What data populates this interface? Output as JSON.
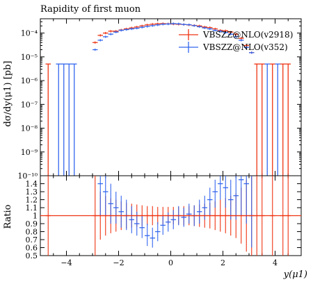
{
  "chart_data": {
    "type": "line",
    "title": "Rapidity of first muon",
    "xlabel": "y(μ1)",
    "ylabel": "dσ/dy(μ1) [pb]",
    "ratio_ylabel": "Ratio",
    "xlim": [
      -5,
      5
    ],
    "ylim": [
      1e-10,
      0.0004
    ],
    "yscale": "log",
    "ratio_ylim": [
      0.5,
      1.5
    ],
    "grid": false,
    "legend_position": "top-right",
    "x_ticks": [
      -4,
      -2,
      0,
      2,
      4
    ],
    "x_tick_labels": [
      "−4",
      "−2",
      "0",
      "2",
      "4"
    ],
    "y_tick_exps": [
      -10,
      -9,
      -8,
      -7,
      -6,
      -5,
      -4
    ],
    "y_tick_labels": [
      "10⁻¹⁰",
      "10⁻⁹",
      "10⁻⁸",
      "10⁻⁷",
      "10⁻⁶",
      "10⁻⁵",
      "10⁻⁴"
    ],
    "ratio_ticks": [
      0.5,
      0.6,
      0.7,
      0.8,
      0.9,
      1.0,
      1.1,
      1.2,
      1.3,
      1.4
    ],
    "ratio_tick_labels": [
      "0.5",
      "0.6",
      "0.7",
      "0.8",
      "0.9",
      "1",
      "1.1",
      "1.2",
      "1.3",
      "1.4"
    ],
    "series": [
      {
        "name": "VBSZZ@NLO(v2918)",
        "color": "#ee3311",
        "bins": [
          {
            "x0": -4.8,
            "x1": -4.6,
            "y": 5e-06
          },
          {
            "x0": -3.0,
            "x1": -2.8,
            "y": 4e-05
          },
          {
            "x0": -2.8,
            "x1": -2.6,
            "y": 8e-05
          },
          {
            "x0": -2.6,
            "x1": -2.4,
            "y": 0.0001
          },
          {
            "x0": -2.4,
            "x1": -2.2,
            "y": 0.00012
          },
          {
            "x0": -2.2,
            "x1": -2.0,
            "y": 0.00012
          },
          {
            "x0": -2.0,
            "x1": -1.8,
            "y": 0.000135
          },
          {
            "x0": -1.8,
            "x1": -1.6,
            "y": 0.00015
          },
          {
            "x0": -1.6,
            "x1": -1.4,
            "y": 0.000165
          },
          {
            "x0": -1.4,
            "x1": -1.2,
            "y": 0.00018
          },
          {
            "x0": -1.2,
            "x1": -1.0,
            "y": 0.0002
          },
          {
            "x0": -1.0,
            "x1": -0.8,
            "y": 0.00022
          },
          {
            "x0": -0.8,
            "x1": -0.6,
            "y": 0.000235
          },
          {
            "x0": -0.6,
            "x1": -0.4,
            "y": 0.000245
          },
          {
            "x0": -0.4,
            "x1": -0.2,
            "y": 0.00025
          },
          {
            "x0": -0.2,
            "x1": 0.0,
            "y": 0.000245
          },
          {
            "x0": 0.0,
            "x1": 0.2,
            "y": 0.00024
          },
          {
            "x0": 0.2,
            "x1": 0.4,
            "y": 0.000235
          },
          {
            "x0": 0.4,
            "x1": 0.6,
            "y": 0.00023
          },
          {
            "x0": 0.6,
            "x1": 0.8,
            "y": 0.00022
          },
          {
            "x0": 0.8,
            "x1": 1.0,
            "y": 0.00021
          },
          {
            "x0": 1.0,
            "x1": 1.2,
            "y": 0.0002
          },
          {
            "x0": 1.2,
            "x1": 1.4,
            "y": 0.00018
          },
          {
            "x0": 1.4,
            "x1": 1.6,
            "y": 0.00017
          },
          {
            "x0": 1.6,
            "x1": 1.8,
            "y": 0.00015
          },
          {
            "x0": 1.8,
            "x1": 2.0,
            "y": 0.00013
          },
          {
            "x0": 2.0,
            "x1": 2.2,
            "y": 0.000125
          },
          {
            "x0": 2.2,
            "x1": 2.4,
            "y": 0.00011
          },
          {
            "x0": 2.4,
            "x1": 2.6,
            "y": 9e-05
          },
          {
            "x0": 2.6,
            "x1": 2.8,
            "y": 6e-05
          },
          {
            "x0": 2.8,
            "x1": 3.0,
            "y": 3e-05
          },
          {
            "x0": 3.0,
            "x1": 3.2,
            "y": 1.5e-05
          },
          {
            "x0": 3.2,
            "x1": 3.4,
            "y": 5e-06
          },
          {
            "x0": 3.4,
            "x1": 3.6,
            "y": 5e-06
          },
          {
            "x0": 3.8,
            "x1": 4.0,
            "y": 5e-06
          },
          {
            "x0": 4.2,
            "x1": 4.4,
            "y": 5e-06
          },
          {
            "x0": 4.4,
            "x1": 4.6,
            "y": 5e-06
          }
        ],
        "ratio": [
          {
            "x0": -4.8,
            "x1": -4.6,
            "r": 1.0,
            "lo": 0.5,
            "hi": 1.5
          },
          {
            "x0": -3.0,
            "x1": -2.8,
            "r": 1.0,
            "lo": 0.5,
            "hi": 1.5
          },
          {
            "x0": -2.8,
            "x1": -2.6,
            "r": 1.0,
            "lo": 0.7,
            "hi": 1.3
          },
          {
            "x0": -2.6,
            "x1": -2.4,
            "r": 1.0,
            "lo": 0.75,
            "hi": 1.25
          },
          {
            "x0": -2.4,
            "x1": -2.2,
            "r": 1.0,
            "lo": 0.78,
            "hi": 1.22
          },
          {
            "x0": -2.2,
            "x1": -2.0,
            "r": 1.0,
            "lo": 0.8,
            "hi": 1.2
          },
          {
            "x0": -2.0,
            "x1": -1.8,
            "r": 1.0,
            "lo": 0.82,
            "hi": 1.18
          },
          {
            "x0": -1.8,
            "x1": -1.6,
            "r": 1.0,
            "lo": 0.84,
            "hi": 1.16
          },
          {
            "x0": -1.6,
            "x1": -1.4,
            "r": 1.0,
            "lo": 0.85,
            "hi": 1.15
          },
          {
            "x0": -1.4,
            "x1": -1.2,
            "r": 1.0,
            "lo": 0.86,
            "hi": 1.14
          },
          {
            "x0": -1.2,
            "x1": -1.0,
            "r": 1.0,
            "lo": 0.87,
            "hi": 1.13
          },
          {
            "x0": -1.0,
            "x1": -0.8,
            "r": 1.0,
            "lo": 0.88,
            "hi": 1.12
          },
          {
            "x0": -0.8,
            "x1": -0.6,
            "r": 1.0,
            "lo": 0.88,
            "hi": 1.12
          },
          {
            "x0": -0.6,
            "x1": -0.4,
            "r": 1.0,
            "lo": 0.89,
            "hi": 1.11
          },
          {
            "x0": -0.4,
            "x1": -0.2,
            "r": 1.0,
            "lo": 0.89,
            "hi": 1.11
          },
          {
            "x0": -0.2,
            "x1": 0.0,
            "r": 1.0,
            "lo": 0.89,
            "hi": 1.11
          },
          {
            "x0": 0.0,
            "x1": 0.2,
            "r": 1.0,
            "lo": 0.89,
            "hi": 1.11
          },
          {
            "x0": 0.2,
            "x1": 0.4,
            "r": 1.0,
            "lo": 0.89,
            "hi": 1.11
          },
          {
            "x0": 0.4,
            "x1": 0.6,
            "r": 1.0,
            "lo": 0.88,
            "hi": 1.12
          },
          {
            "x0": 0.6,
            "x1": 0.8,
            "r": 1.0,
            "lo": 0.88,
            "hi": 1.12
          },
          {
            "x0": 0.8,
            "x1": 1.0,
            "r": 1.0,
            "lo": 0.87,
            "hi": 1.13
          },
          {
            "x0": 1.0,
            "x1": 1.2,
            "r": 1.0,
            "lo": 0.86,
            "hi": 1.14
          },
          {
            "x0": 1.2,
            "x1": 1.4,
            "r": 1.0,
            "lo": 0.85,
            "hi": 1.15
          },
          {
            "x0": 1.4,
            "x1": 1.6,
            "r": 1.0,
            "lo": 0.84,
            "hi": 1.16
          },
          {
            "x0": 1.6,
            "x1": 1.8,
            "r": 1.0,
            "lo": 0.82,
            "hi": 1.18
          },
          {
            "x0": 1.8,
            "x1": 2.0,
            "r": 1.0,
            "lo": 0.8,
            "hi": 1.2
          },
          {
            "x0": 2.0,
            "x1": 2.2,
            "r": 1.0,
            "lo": 0.78,
            "hi": 1.22
          },
          {
            "x0": 2.2,
            "x1": 2.4,
            "r": 1.0,
            "lo": 0.75,
            "hi": 1.25
          },
          {
            "x0": 2.4,
            "x1": 2.6,
            "r": 1.0,
            "lo": 0.72,
            "hi": 1.28
          },
          {
            "x0": 2.6,
            "x1": 2.8,
            "r": 1.0,
            "lo": 0.65,
            "hi": 1.35
          },
          {
            "x0": 2.8,
            "x1": 3.0,
            "r": 1.0,
            "lo": 0.55,
            "hi": 1.45
          },
          {
            "x0": 3.0,
            "x1": 3.2,
            "r": 1.0,
            "lo": 0.5,
            "hi": 1.5
          },
          {
            "x0": 3.2,
            "x1": 3.4,
            "r": 1.0,
            "lo": 0.5,
            "hi": 1.5
          },
          {
            "x0": 3.4,
            "x1": 3.6,
            "r": 1.0,
            "lo": 0.5,
            "hi": 1.5
          },
          {
            "x0": 3.8,
            "x1": 4.0,
            "r": 1.0,
            "lo": 0.5,
            "hi": 1.5
          },
          {
            "x0": 4.2,
            "x1": 4.4,
            "r": 1.0,
            "lo": 0.5,
            "hi": 1.5
          },
          {
            "x0": 4.4,
            "x1": 4.6,
            "r": 1.0,
            "lo": 0.5,
            "hi": 1.5
          }
        ]
      },
      {
        "name": "VBSZZ@NLO(v352)",
        "color": "#3366ee",
        "bins": [
          {
            "x0": -4.4,
            "x1": -4.2,
            "y": 5e-06
          },
          {
            "x0": -4.2,
            "x1": -4.0,
            "y": 5e-06
          },
          {
            "x0": -4.0,
            "x1": -3.8,
            "y": 5e-06
          },
          {
            "x0": -3.8,
            "x1": -3.6,
            "y": 5e-06
          },
          {
            "x0": -3.0,
            "x1": -2.8,
            "y": 2e-05
          },
          {
            "x0": -2.8,
            "x1": -2.6,
            "y": 5e-05
          },
          {
            "x0": -2.6,
            "x1": -2.4,
            "y": 7e-05
          },
          {
            "x0": -2.4,
            "x1": -2.2,
            "y": 9e-05
          },
          {
            "x0": -2.2,
            "x1": -2.0,
            "y": 0.00011
          },
          {
            "x0": -2.0,
            "x1": -1.8,
            "y": 0.00013
          },
          {
            "x0": -1.8,
            "x1": -1.6,
            "y": 0.00014
          },
          {
            "x0": -1.6,
            "x1": -1.4,
            "y": 0.00015
          },
          {
            "x0": -1.4,
            "x1": -1.2,
            "y": 0.00016
          },
          {
            "x0": -1.2,
            "x1": -1.0,
            "y": 0.000175
          },
          {
            "x0": -1.0,
            "x1": -0.8,
            "y": 0.00019
          },
          {
            "x0": -0.8,
            "x1": -0.6,
            "y": 0.000205
          },
          {
            "x0": -0.6,
            "x1": -0.4,
            "y": 0.00022
          },
          {
            "x0": -0.4,
            "x1": -0.2,
            "y": 0.000235
          },
          {
            "x0": -0.2,
            "x1": 0.0,
            "y": 0.00024
          },
          {
            "x0": 0.0,
            "x1": 0.2,
            "y": 0.00025
          },
          {
            "x0": 0.2,
            "x1": 0.4,
            "y": 0.000245
          },
          {
            "x0": 0.4,
            "x1": 0.6,
            "y": 0.00023
          },
          {
            "x0": 0.6,
            "x1": 0.8,
            "y": 0.000225
          },
          {
            "x0": 0.8,
            "x1": 1.0,
            "y": 0.000205
          },
          {
            "x0": 1.0,
            "x1": 1.2,
            "y": 0.000185
          },
          {
            "x0": 1.2,
            "x1": 1.4,
            "y": 0.000165
          },
          {
            "x0": 1.4,
            "x1": 1.6,
            "y": 0.00015
          },
          {
            "x0": 1.6,
            "x1": 1.8,
            "y": 0.00013
          },
          {
            "x0": 1.8,
            "x1": 2.0,
            "y": 0.00012
          },
          {
            "x0": 2.0,
            "x1": 2.2,
            "y": 0.000105
          },
          {
            "x0": 2.2,
            "x1": 2.4,
            "y": 9e-05
          },
          {
            "x0": 2.4,
            "x1": 2.6,
            "y": 7e-05
          },
          {
            "x0": 2.6,
            "x1": 2.8,
            "y": 5e-05
          },
          {
            "x0": 2.8,
            "x1": 3.0,
            "y": 2.5e-05
          },
          {
            "x0": 3.0,
            "x1": 3.2,
            "y": 1.5e-05
          },
          {
            "x0": 3.6,
            "x1": 3.8,
            "y": 5e-06
          },
          {
            "x0": 4.0,
            "x1": 4.2,
            "y": 5e-06
          }
        ],
        "ratio": [
          {
            "x0": -2.8,
            "x1": -2.6,
            "r": 1.4,
            "lo": 1.0,
            "hi": 1.5
          },
          {
            "x0": -2.6,
            "x1": -2.4,
            "r": 1.3,
            "lo": 1.0,
            "hi": 1.5
          },
          {
            "x0": -2.4,
            "x1": -2.2,
            "r": 1.15,
            "lo": 0.9,
            "hi": 1.4
          },
          {
            "x0": -2.2,
            "x1": -2.0,
            "r": 1.1,
            "lo": 0.9,
            "hi": 1.3
          },
          {
            "x0": -2.0,
            "x1": -1.8,
            "r": 1.05,
            "lo": 0.85,
            "hi": 1.25
          },
          {
            "x0": -1.8,
            "x1": -1.6,
            "r": 1.0,
            "lo": 0.82,
            "hi": 1.2
          },
          {
            "x0": -1.6,
            "x1": -1.4,
            "r": 0.95,
            "lo": 0.78,
            "hi": 1.12
          },
          {
            "x0": -1.4,
            "x1": -1.2,
            "r": 0.9,
            "lo": 0.75,
            "hi": 1.05
          },
          {
            "x0": -1.2,
            "x1": -1.0,
            "r": 0.85,
            "lo": 0.72,
            "hi": 1.0
          },
          {
            "x0": -1.0,
            "x1": -0.8,
            "r": 0.75,
            "lo": 0.62,
            "hi": 0.9
          },
          {
            "x0": -0.8,
            "x1": -0.6,
            "r": 0.72,
            "lo": 0.6,
            "hi": 0.85
          },
          {
            "x0": -0.6,
            "x1": -0.4,
            "r": 0.8,
            "lo": 0.68,
            "hi": 0.92
          },
          {
            "x0": -0.4,
            "x1": -0.2,
            "r": 0.88,
            "lo": 0.76,
            "hi": 1.0
          },
          {
            "x0": -0.2,
            "x1": 0.0,
            "r": 0.92,
            "lo": 0.8,
            "hi": 1.04
          },
          {
            "x0": 0.0,
            "x1": 0.2,
            "r": 0.95,
            "lo": 0.83,
            "hi": 1.07
          },
          {
            "x0": 0.2,
            "x1": 0.4,
            "r": 1.0,
            "lo": 0.88,
            "hi": 1.12
          },
          {
            "x0": 0.4,
            "x1": 0.6,
            "r": 0.98,
            "lo": 0.86,
            "hi": 1.1
          },
          {
            "x0": 0.6,
            "x1": 0.8,
            "r": 1.02,
            "lo": 0.9,
            "hi": 1.15
          },
          {
            "x0": 0.8,
            "x1": 1.0,
            "r": 1.0,
            "lo": 0.87,
            "hi": 1.13
          },
          {
            "x0": 1.0,
            "x1": 1.2,
            "r": 1.05,
            "lo": 0.9,
            "hi": 1.2
          },
          {
            "x0": 1.2,
            "x1": 1.4,
            "r": 1.1,
            "lo": 0.95,
            "hi": 1.25
          },
          {
            "x0": 1.4,
            "x1": 1.6,
            "r": 1.2,
            "lo": 1.0,
            "hi": 1.35
          },
          {
            "x0": 1.6,
            "x1": 1.8,
            "r": 1.3,
            "lo": 1.1,
            "hi": 1.45
          },
          {
            "x0": 1.8,
            "x1": 2.0,
            "r": 1.4,
            "lo": 1.2,
            "hi": 1.5
          },
          {
            "x0": 2.0,
            "x1": 2.2,
            "r": 1.35,
            "lo": 1.1,
            "hi": 1.5
          },
          {
            "x0": 2.2,
            "x1": 2.4,
            "r": 1.2,
            "lo": 0.95,
            "hi": 1.45
          },
          {
            "x0": 2.4,
            "x1": 2.6,
            "r": 1.25,
            "lo": 0.95,
            "hi": 1.5
          },
          {
            "x0": 2.6,
            "x1": 2.8,
            "r": 1.45,
            "lo": 1.0,
            "hi": 1.5
          },
          {
            "x0": 2.8,
            "x1": 3.0,
            "r": 1.4,
            "lo": 0.9,
            "hi": 1.5
          },
          {
            "x0": 3.0,
            "x1": 3.2,
            "r": 1.0,
            "lo": 0.6,
            "hi": 1.5
          }
        ]
      }
    ]
  }
}
